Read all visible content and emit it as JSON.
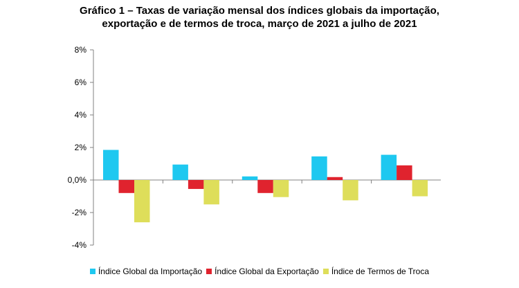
{
  "title": {
    "line1": "Gráfico 1 – Taxas de variação mensal dos índices globais da importação,",
    "line2": "exportação e de termos de troca, março de 2021 a julho de 2021"
  },
  "chart_data": {
    "type": "bar",
    "categories": [
      "",
      "",
      "",
      "",
      ""
    ],
    "ylim": [
      -4,
      8
    ],
    "yticks": [
      8,
      6,
      4,
      2,
      0,
      -2,
      -4
    ],
    "ytick_labels": [
      "8%",
      "6%",
      "4%",
      "2%",
      "0,0%",
      "-2%",
      "-4%"
    ],
    "grid": false,
    "legend_position": "bottom",
    "series": [
      {
        "name": "Índice Global da Importação",
        "color": "#1ec8f0",
        "values": [
          1.85,
          0.95,
          0.22,
          1.45,
          1.55
        ]
      },
      {
        "name": "Índice Global da Exportação",
        "color": "#e0232e",
        "values": [
          -0.8,
          -0.55,
          -0.8,
          0.18,
          0.9
        ]
      },
      {
        "name": "Índice de Termos de Troca",
        "color": "#dede5a",
        "values": [
          -2.6,
          -1.5,
          -1.05,
          -1.25,
          -1.0
        ]
      }
    ]
  }
}
